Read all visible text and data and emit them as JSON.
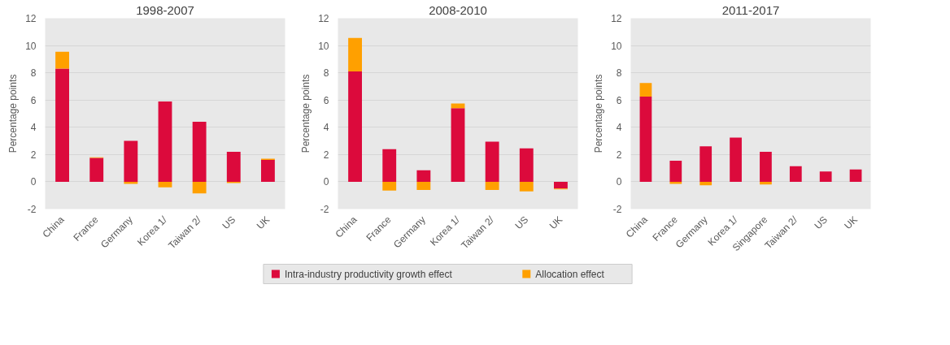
{
  "chart_data": [
    {
      "type": "bar",
      "title": "1998-2007",
      "ylabel": "Percentage points",
      "stacked": true,
      "categories": [
        "China",
        "France",
        "Germany",
        "Korea 1/",
        "Taiwan 2/",
        "US",
        "UK"
      ],
      "ylim": [
        -2,
        12
      ],
      "yticks": [
        -2,
        0,
        2,
        4,
        6,
        8,
        10,
        12
      ],
      "grid": "y",
      "series": [
        {
          "color": "#dc0a3c",
          "values": [
            8.3,
            1.75,
            3.0,
            5.9,
            4.4,
            2.2,
            1.6
          ]
        },
        {
          "color": "#ffa000",
          "values": [
            1.25,
            0.05,
            -0.15,
            -0.4,
            -0.85,
            -0.1,
            0.1
          ]
        }
      ]
    },
    {
      "type": "bar",
      "title": "2008-2010",
      "ylabel": "Percentage points",
      "stacked": true,
      "categories": [
        "China",
        "France",
        "Germany",
        "Korea 1/",
        "Taiwan 2/",
        "US",
        "UK"
      ],
      "ylim": [
        -2,
        12
      ],
      "yticks": [
        -2,
        0,
        2,
        4,
        6,
        8,
        10,
        12
      ],
      "grid": "y",
      "legend": "bottom",
      "series": [
        {
          "name": "Intra-industry productivity growth effect",
          "color": "#dc0a3c",
          "values": [
            8.1,
            2.4,
            0.85,
            5.4,
            2.95,
            2.45,
            -0.5
          ]
        },
        {
          "name": "Allocation effect",
          "color": "#ffa000",
          "values": [
            2.45,
            -0.65,
            -0.6,
            0.35,
            -0.6,
            -0.7,
            -0.05
          ]
        }
      ]
    },
    {
      "type": "bar",
      "title": "2011-2017",
      "ylabel": "Percentage points",
      "stacked": true,
      "categories": [
        "China",
        "France",
        "Germany",
        "Korea 1/",
        "Singapore",
        "Taiwan 2/",
        "US",
        "UK"
      ],
      "ylim": [
        -2,
        12
      ],
      "yticks": [
        -2,
        0,
        2,
        4,
        6,
        8,
        10,
        12
      ],
      "grid": "y",
      "series": [
        {
          "color": "#dc0a3c",
          "values": [
            6.25,
            1.55,
            2.6,
            3.25,
            2.2,
            1.15,
            0.75,
            0.9
          ]
        },
        {
          "color": "#ffa000",
          "values": [
            1.0,
            -0.15,
            -0.25,
            0,
            -0.2,
            0,
            0,
            0
          ]
        }
      ]
    }
  ]
}
